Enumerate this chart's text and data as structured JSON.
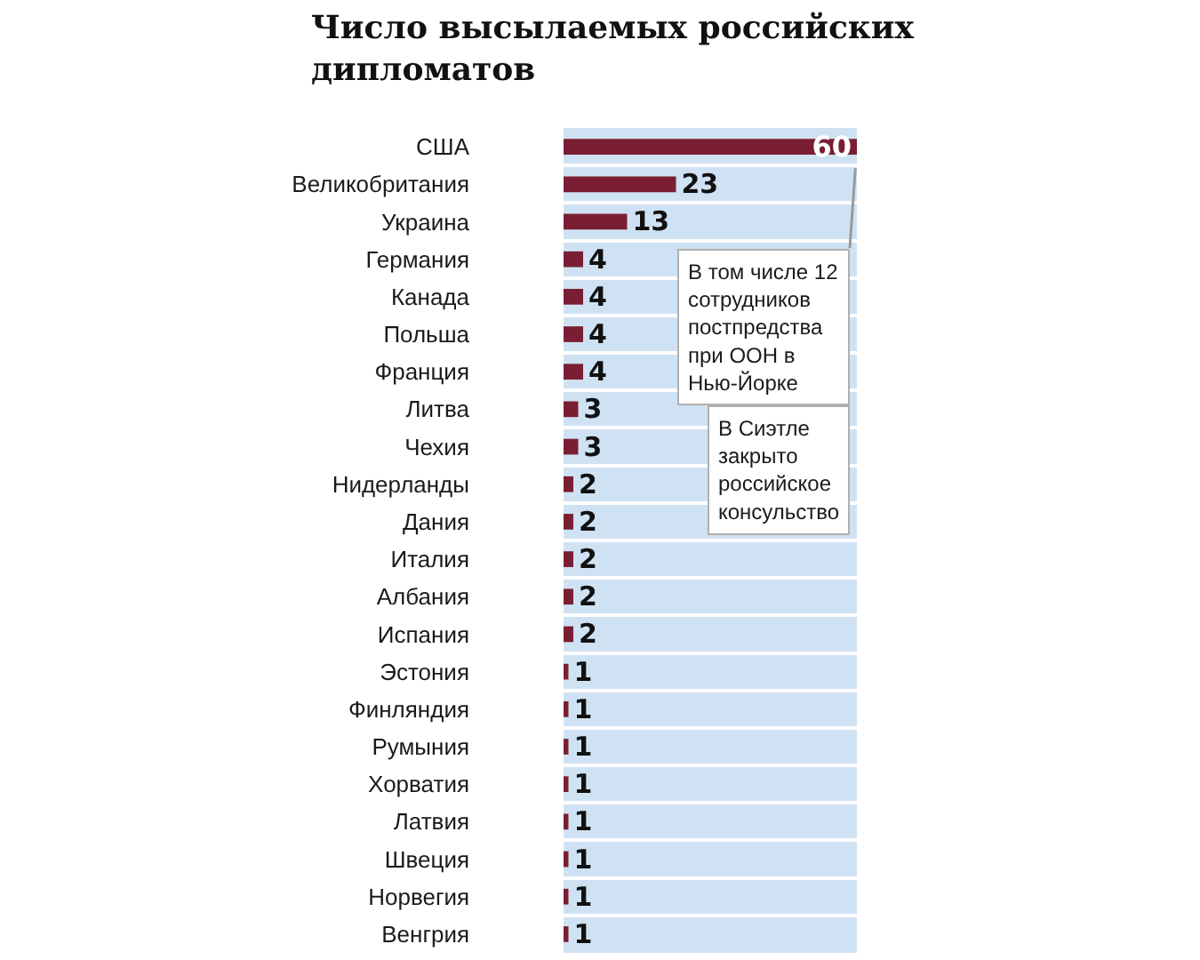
{
  "chart_data": {
    "type": "bar",
    "orientation": "horizontal",
    "title": "Число высылаемых российских дипломатов",
    "categories": [
      "США",
      "Великобритания",
      "Украина",
      "Германия",
      "Канада",
      "Польша",
      "Франция",
      "Литва",
      "Чехия",
      "Нидерланды",
      "Дания",
      "Италия",
      "Албания",
      "Испания",
      "Эстония",
      "Финляндия",
      "Румыния",
      "Хорватия",
      "Латвия",
      "Швеция",
      "Норвегия",
      "Венгрия"
    ],
    "values": [
      60,
      23,
      13,
      4,
      4,
      4,
      4,
      3,
      3,
      2,
      2,
      2,
      2,
      2,
      1,
      1,
      1,
      1,
      1,
      1,
      1,
      1
    ],
    "color": "#7a1f33",
    "xlim": [
      0,
      60
    ],
    "data_labels": true,
    "tick_labels": "y",
    "grid": "y",
    "annotations": [
      {
        "text": "В том числе 12 сотрудников постпредства при ООН в Нью-Йорке",
        "x": 60,
        "y": "США"
      },
      "В Сиэтле закрыто российское консульство"
    ]
  }
}
